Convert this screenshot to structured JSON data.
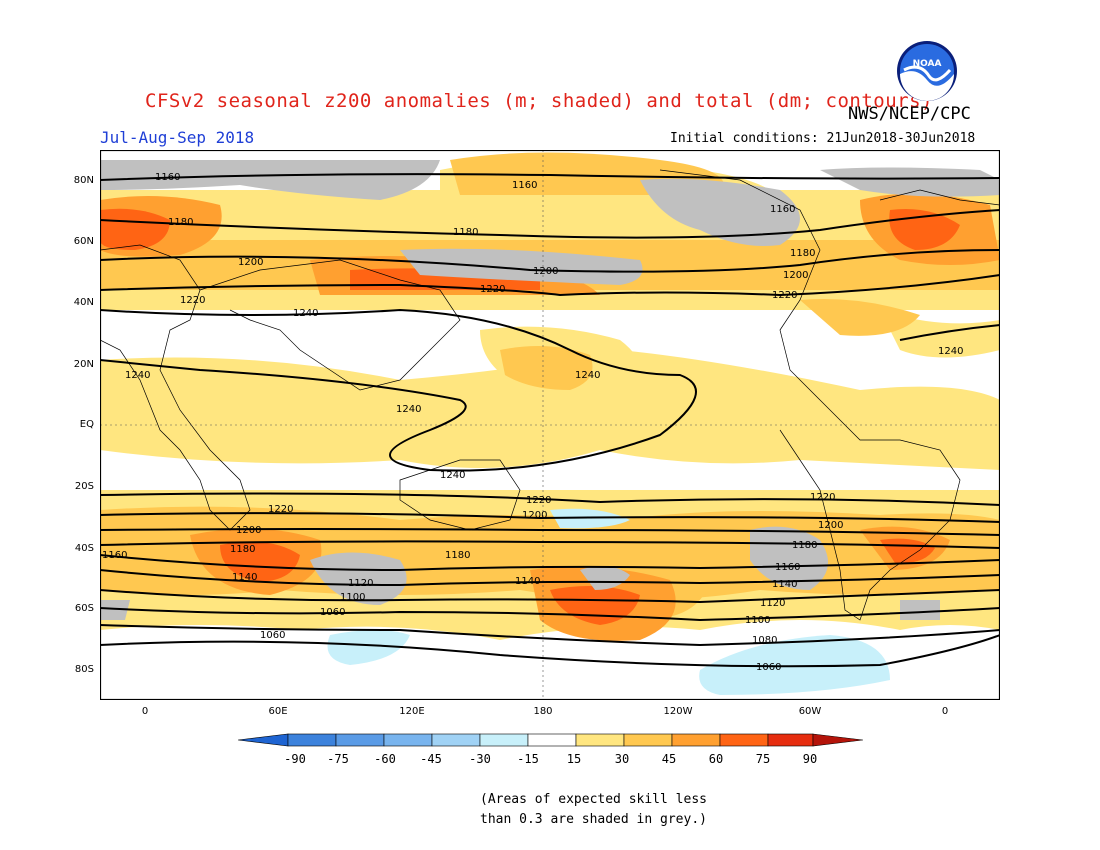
{
  "header": {
    "title": "CFSv2 seasonal z200 anomalies (m; shaded) and total (dm; contours)",
    "season": "Jul-Aug-Sep 2018",
    "agency": "NWS/NCEP/CPC",
    "initial_conditions": "Initial conditions: 21Jun2018-30Jun2018",
    "logo_icon": "noaa-logo-icon"
  },
  "map": {
    "lat_labels": [
      "80N",
      "60N",
      "40N",
      "20N",
      "EQ",
      "20S",
      "40S",
      "60S",
      "80S"
    ],
    "lon_labels": [
      "0",
      "60E",
      "120E",
      "180",
      "120W",
      "60W",
      "0"
    ],
    "contour_labels": [
      "1060",
      "1080",
      "1100",
      "1120",
      "1140",
      "1160",
      "1180",
      "1200",
      "1220",
      "1240"
    ],
    "colors": {
      "neg90": "#1e64d2",
      "neg75": "#3c82dc",
      "neg60": "#5a9be6",
      "neg45": "#78b4ee",
      "neg30": "#a0d2f5",
      "neg15": "#c8f0fa",
      "neutral": "#ffffff",
      "pos15": "#ffe680",
      "pos30": "#ffc850",
      "pos45": "#ffa030",
      "pos60": "#ff6414",
      "pos75": "#e62d0f",
      "pos90": "#b4140a",
      "low_skill": "#c0c0c0"
    }
  },
  "colorbar": {
    "labels": [
      "-90",
      "-75",
      "-60",
      "-45",
      "-30",
      "-15",
      "15",
      "30",
      "45",
      "60",
      "75",
      "90"
    ]
  },
  "footnote": {
    "line1": "(Areas of expected skill less",
    "line2": "than 0.3 are shaded in grey.)"
  }
}
